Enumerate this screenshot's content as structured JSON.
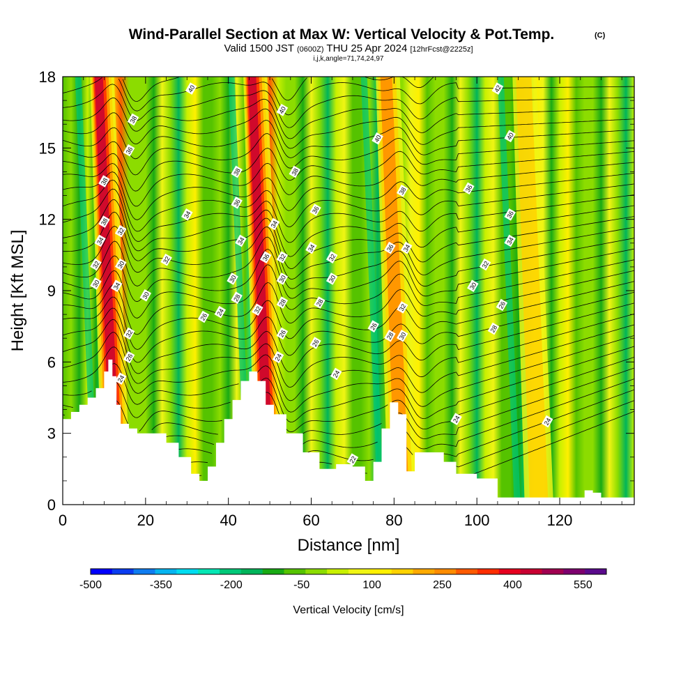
{
  "chart_data": {
    "type": "heatmap",
    "title": "Wind-Parallel Section at Max W: Vertical Velocity & Pot.Temp.",
    "title_mark": "(C)",
    "subtitle_main_a": "Valid 1500 JST",
    "subtitle_small_a": "(0600Z)",
    "subtitle_main_b": "THU 25 Apr 2024",
    "subtitle_small_b": "[12hrFcst@2225z]",
    "subtitle_line2": "i,j,k,angle=71,74,24,97",
    "xlabel": "Distance [nm]",
    "ylabel": "Height [Kft MSL]",
    "xlim": [
      0,
      138
    ],
    "ylim": [
      0,
      18
    ],
    "x_ticks": [
      "0",
      "20",
      "40",
      "60",
      "80",
      "100",
      "120"
    ],
    "y_ticks": [
      "0",
      "3",
      "6",
      "9",
      "12",
      "15",
      "18"
    ],
    "colorbar": {
      "title": "Vertical Velocity [cm/s]",
      "min": -500,
      "max": 600,
      "step": 50,
      "labels": [
        "-500",
        "-350",
        "-200",
        "-50",
        "100",
        "250",
        "400",
        "550"
      ],
      "colors": [
        "#0000ff",
        "#0a3cf0",
        "#0f7cf0",
        "#05b4f0",
        "#00dcf0",
        "#05e6b4",
        "#00c878",
        "#00b45a",
        "#18aa14",
        "#55c300",
        "#8cdc00",
        "#c8f000",
        "#f0f514",
        "#fff000",
        "#ffd200",
        "#ffaa00",
        "#ff8c00",
        "#ff5a00",
        "#ff2d00",
        "#e6001e",
        "#c80032",
        "#a00050",
        "#7d006e",
        "#5a0a8c"
      ]
    },
    "updraft_cores": [
      {
        "x": 13,
        "strength": 550
      },
      {
        "x": 50,
        "strength": 500
      },
      {
        "x": 82,
        "strength": 300
      },
      {
        "x": 115,
        "strength": 250
      }
    ],
    "terrain_kft": [
      [
        0,
        3.6
      ],
      [
        2,
        3.9
      ],
      [
        4,
        4.2
      ],
      [
        6,
        4.5
      ],
      [
        8,
        4.9
      ],
      [
        10,
        5.6
      ],
      [
        11,
        6.1
      ],
      [
        12,
        5.4
      ],
      [
        13,
        4.2
      ],
      [
        14,
        3.4
      ],
      [
        16,
        3.2
      ],
      [
        18,
        3.0
      ],
      [
        22,
        3.0
      ],
      [
        25,
        2.6
      ],
      [
        28,
        2.0
      ],
      [
        31,
        1.3
      ],
      [
        33,
        1.0
      ],
      [
        35,
        1.6
      ],
      [
        37,
        2.6
      ],
      [
        39,
        3.6
      ],
      [
        41,
        4.4
      ],
      [
        43,
        5.2
      ],
      [
        45,
        5.6
      ],
      [
        47,
        5.2
      ],
      [
        49,
        4.2
      ],
      [
        51,
        3.8
      ],
      [
        54,
        3.0
      ],
      [
        58,
        2.2
      ],
      [
        62,
        1.5
      ],
      [
        66,
        1.7
      ],
      [
        70,
        1.6
      ],
      [
        73,
        1.0
      ],
      [
        75,
        1.8
      ],
      [
        77,
        3.2
      ],
      [
        79,
        4.3
      ],
      [
        81,
        3.8
      ],
      [
        83,
        1.4
      ],
      [
        85,
        2.2
      ],
      [
        88,
        2.2
      ],
      [
        92,
        1.8
      ],
      [
        95,
        1.3
      ],
      [
        100,
        1.1
      ],
      [
        105,
        0.3
      ],
      [
        124,
        0.3
      ],
      [
        126,
        0.6
      ],
      [
        128,
        0.5
      ],
      [
        130,
        0.3
      ],
      [
        138,
        0.3
      ]
    ],
    "theta_labels": [
      {
        "x": 31,
        "y": 17.5,
        "v": "40"
      },
      {
        "x": 105,
        "y": 17.5,
        "v": "42"
      },
      {
        "x": 17,
        "y": 16.2,
        "v": "38"
      },
      {
        "x": 53,
        "y": 16.6,
        "v": "40"
      },
      {
        "x": 76,
        "y": 15.4,
        "v": "40"
      },
      {
        "x": 108,
        "y": 15.5,
        "v": "40"
      },
      {
        "x": 16,
        "y": 14.9,
        "v": "36"
      },
      {
        "x": 42,
        "y": 14.0,
        "v": "38"
      },
      {
        "x": 56,
        "y": 14.0,
        "v": "38"
      },
      {
        "x": 10,
        "y": 13.6,
        "v": "38"
      },
      {
        "x": 82,
        "y": 13.2,
        "v": "38"
      },
      {
        "x": 98,
        "y": 13.3,
        "v": "36"
      },
      {
        "x": 42,
        "y": 12.7,
        "v": "36"
      },
      {
        "x": 61,
        "y": 12.4,
        "v": "36"
      },
      {
        "x": 30,
        "y": 12.2,
        "v": "34"
      },
      {
        "x": 108,
        "y": 12.2,
        "v": "36"
      },
      {
        "x": 10,
        "y": 11.9,
        "v": "38"
      },
      {
        "x": 14,
        "y": 11.5,
        "v": "32"
      },
      {
        "x": 51,
        "y": 11.8,
        "v": "34"
      },
      {
        "x": 43,
        "y": 11.1,
        "v": "34"
      },
      {
        "x": 108,
        "y": 11.1,
        "v": "34"
      },
      {
        "x": 9,
        "y": 11.1,
        "v": "34"
      },
      {
        "x": 60,
        "y": 10.8,
        "v": "34"
      },
      {
        "x": 79,
        "y": 10.8,
        "v": "36"
      },
      {
        "x": 83,
        "y": 10.8,
        "v": "34"
      },
      {
        "x": 49,
        "y": 10.4,
        "v": "36"
      },
      {
        "x": 53,
        "y": 10.4,
        "v": "32"
      },
      {
        "x": 65,
        "y": 10.4,
        "v": "32"
      },
      {
        "x": 25,
        "y": 10.3,
        "v": "32"
      },
      {
        "x": 14,
        "y": 10.1,
        "v": "30"
      },
      {
        "x": 8,
        "y": 10.1,
        "v": "32"
      },
      {
        "x": 102,
        "y": 10.1,
        "v": "32"
      },
      {
        "x": 41,
        "y": 9.5,
        "v": "30"
      },
      {
        "x": 53,
        "y": 9.5,
        "v": "30"
      },
      {
        "x": 65,
        "y": 9.5,
        "v": "30"
      },
      {
        "x": 8,
        "y": 9.3,
        "v": "30"
      },
      {
        "x": 13,
        "y": 9.2,
        "v": "34"
      },
      {
        "x": 99,
        "y": 9.2,
        "v": "30"
      },
      {
        "x": 20,
        "y": 8.8,
        "v": "30"
      },
      {
        "x": 42,
        "y": 8.7,
        "v": "28"
      },
      {
        "x": 53,
        "y": 8.5,
        "v": "28"
      },
      {
        "x": 62,
        "y": 8.5,
        "v": "28"
      },
      {
        "x": 106,
        "y": 8.4,
        "v": "26"
      },
      {
        "x": 47,
        "y": 8.2,
        "v": "32"
      },
      {
        "x": 82,
        "y": 8.3,
        "v": "32"
      },
      {
        "x": 38,
        "y": 8.1,
        "v": "24"
      },
      {
        "x": 34,
        "y": 7.9,
        "v": "26"
      },
      {
        "x": 75,
        "y": 7.5,
        "v": "26"
      },
      {
        "x": 104,
        "y": 7.4,
        "v": "28"
      },
      {
        "x": 16,
        "y": 7.2,
        "v": "32"
      },
      {
        "x": 53,
        "y": 7.2,
        "v": "26"
      },
      {
        "x": 79,
        "y": 7.1,
        "v": "28"
      },
      {
        "x": 82,
        "y": 7.1,
        "v": "30"
      },
      {
        "x": 61,
        "y": 6.8,
        "v": "26"
      },
      {
        "x": 16,
        "y": 6.2,
        "v": "26"
      },
      {
        "x": 52,
        "y": 6.2,
        "v": "24"
      },
      {
        "x": 66,
        "y": 5.5,
        "v": "24"
      },
      {
        "x": 14,
        "y": 5.3,
        "v": "24"
      },
      {
        "x": 95,
        "y": 3.6,
        "v": "24"
      },
      {
        "x": 117,
        "y": 3.5,
        "v": "24"
      },
      {
        "x": 70,
        "y": 1.9,
        "v": "22"
      }
    ]
  }
}
